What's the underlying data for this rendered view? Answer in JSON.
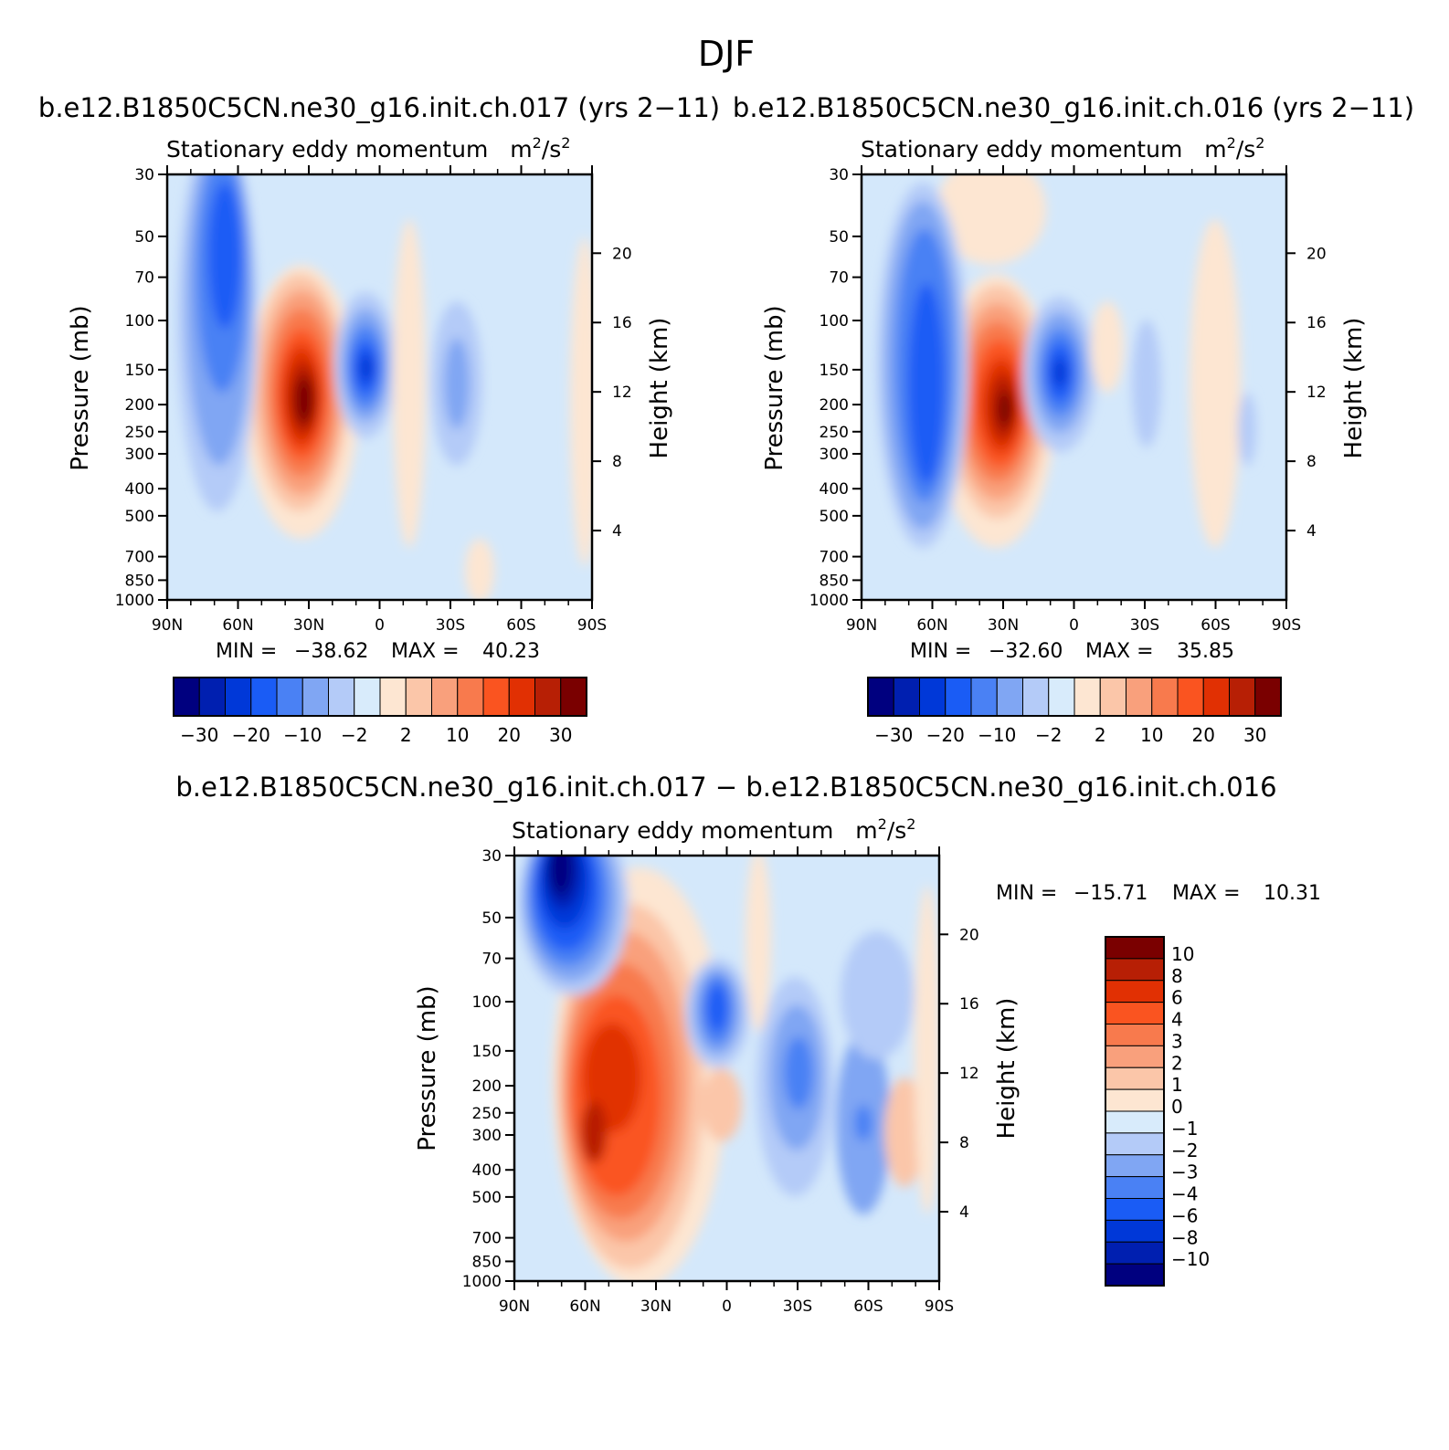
{
  "figure": {
    "title": "DJF"
  },
  "colors": {
    "panel_bg": "#d4e8fb",
    "cb_abs": [
      "#00007f",
      "#001fb0",
      "#0038d8",
      "#1a5cf5",
      "#4a81f4",
      "#80a6f3",
      "#b4cbf8",
      "#d8ebfb",
      "#fde6d2",
      "#fbc6a9",
      "#f9a07c",
      "#f87a4d",
      "#fa5420",
      "#e13003",
      "#b71f05",
      "#7a0000"
    ],
    "cb_diff": [
      "#00007f",
      "#001fb0",
      "#0038d8",
      "#1a5cf5",
      "#4a81f4",
      "#80a6f3",
      "#b4cbf8",
      "#d8ebfb",
      "#fde6d2",
      "#fbc6a9",
      "#f9a07c",
      "#f87a4d",
      "#fa5420",
      "#e13003",
      "#b71f05",
      "#7a0000"
    ]
  },
  "chart_data": [
    {
      "type": "heatmap",
      "panel": "top-left",
      "case_title": "b.e12.B1850C5CN.ne30_g16.init.ch.017 (yrs 2−11)",
      "var_title": "Stationary eddy momentum",
      "units_base": "m",
      "units_sup1": "2",
      "units_mid": "/s",
      "units_sup2": "2",
      "ylabel": "Pressure (mb)",
      "ylabel_right": "Height (km)",
      "xticks": [
        "90N",
        "60N",
        "30N",
        "0",
        "30S",
        "60S",
        "90S"
      ],
      "yticks": [
        "30",
        "50",
        "70",
        "100",
        "150",
        "200",
        "250",
        "300",
        "400",
        "500",
        "700",
        "850",
        "1000"
      ],
      "ylim": [
        30,
        1000
      ],
      "xlim": [
        90,
        -90
      ],
      "height_ticks": [
        "20",
        "16",
        "12",
        "8",
        "4"
      ],
      "min_label": "MIN =",
      "min_value": "−38.62",
      "max_label": "MAX =",
      "max_value": "40.23",
      "colorbar_labels": [
        "−30",
        "−20",
        "−10",
        "−2",
        "2",
        "10",
        "20",
        "30"
      ]
    },
    {
      "type": "heatmap",
      "panel": "top-right",
      "case_title": "b.e12.B1850C5CN.ne30_g16.init.ch.016 (yrs 2−11)",
      "var_title": "Stationary eddy momentum",
      "units_base": "m",
      "units_sup1": "2",
      "units_mid": "/s",
      "units_sup2": "2",
      "ylabel": "Pressure (mb)",
      "ylabel_right": "Height (km)",
      "xticks": [
        "90N",
        "60N",
        "30N",
        "0",
        "30S",
        "60S",
        "90S"
      ],
      "yticks": [
        "30",
        "50",
        "70",
        "100",
        "150",
        "200",
        "250",
        "300",
        "400",
        "500",
        "700",
        "850",
        "1000"
      ],
      "ylim": [
        30,
        1000
      ],
      "xlim": [
        90,
        -90
      ],
      "height_ticks": [
        "20",
        "16",
        "12",
        "8",
        "4"
      ],
      "min_label": "MIN =",
      "min_value": "−32.60",
      "max_label": "MAX =",
      "max_value": "35.85",
      "colorbar_labels": [
        "−30",
        "−20",
        "−10",
        "−2",
        "2",
        "10",
        "20",
        "30"
      ]
    },
    {
      "type": "heatmap",
      "panel": "bottom",
      "case_title": "b.e12.B1850C5CN.ne30_g16.init.ch.017 − b.e12.B1850C5CN.ne30_g16.init.ch.016",
      "var_title": "Stationary eddy momentum",
      "units_base": "m",
      "units_sup1": "2",
      "units_mid": "/s",
      "units_sup2": "2",
      "ylabel": "Pressure (mb)",
      "ylabel_right": "Height (km)",
      "xticks": [
        "90N",
        "60N",
        "30N",
        "0",
        "30S",
        "60S",
        "90S"
      ],
      "yticks": [
        "30",
        "50",
        "70",
        "100",
        "150",
        "200",
        "250",
        "300",
        "400",
        "500",
        "700",
        "850",
        "1000"
      ],
      "ylim": [
        30,
        1000
      ],
      "xlim": [
        90,
        -90
      ],
      "height_ticks": [
        "20",
        "16",
        "12",
        "8",
        "4"
      ],
      "min_label": "MIN =",
      "min_value": "−15.71",
      "max_label": "MAX =",
      "max_value": "10.31",
      "colorbar_labels": [
        "10",
        "8",
        "6",
        "4",
        "3",
        "2",
        "1",
        "0",
        "−1",
        "−2",
        "−3",
        "−4",
        "−6",
        "−8",
        "−10"
      ]
    }
  ]
}
